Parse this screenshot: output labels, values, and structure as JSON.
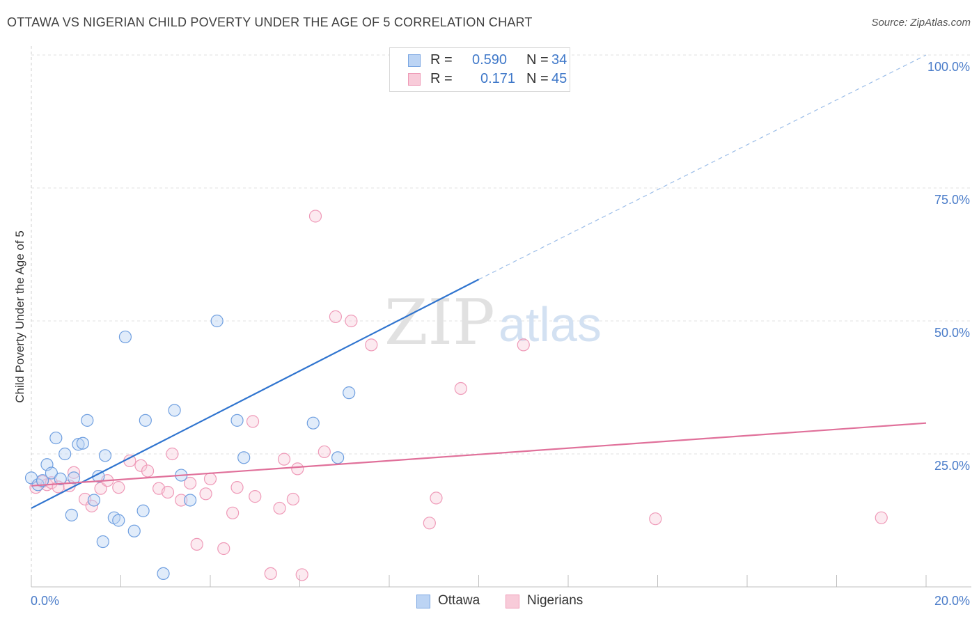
{
  "title": "OTTAWA VS NIGERIAN CHILD POVERTY UNDER THE AGE OF 5 CORRELATION CHART",
  "source": "Source: ZipAtlas.com",
  "watermark": {
    "part1": "ZIP",
    "part2": "atlas"
  },
  "legend": {
    "rows": [
      {
        "r_label": "R =",
        "r_value": "0.590",
        "n_label": "N =",
        "n_value": "34"
      },
      {
        "r_label": "R =",
        "r_value": "0.171",
        "n_label": "N =",
        "n_value": "45"
      }
    ]
  },
  "bottom_legend": {
    "ottawa": "Ottawa",
    "nigerians": "Nigerians"
  },
  "chart_data": {
    "type": "scatter",
    "title": "OTTAWA VS NIGERIAN CHILD POVERTY UNDER THE AGE OF 5 CORRELATION CHART",
    "xlabel": "",
    "ylabel": "Child Poverty Under the Age of 5",
    "xlim": [
      0,
      20
    ],
    "ylim": [
      0,
      100
    ],
    "x_ticks": [
      "0.0%",
      "20.0%"
    ],
    "y_ticks": [
      {
        "value": 25,
        "label": "25.0%"
      },
      {
        "value": 50,
        "label": "50.0%"
      },
      {
        "value": 75,
        "label": "75.0%"
      },
      {
        "value": 100,
        "label": "100.0%"
      }
    ],
    "grid": true,
    "legend_position": "top-center",
    "colors": {
      "ottawa": "#6f9fe0",
      "nigerians": "#ef9ab8",
      "ottawa_line": "#2f74cf",
      "nigerians_line": "#e0709a"
    },
    "series": [
      {
        "name": "Ottawa",
        "points": [
          [
            0.0,
            20.5
          ],
          [
            0.15,
            19.2
          ],
          [
            0.25,
            20.0
          ],
          [
            0.35,
            23.0
          ],
          [
            0.45,
            21.4
          ],
          [
            0.55,
            28.0
          ],
          [
            0.65,
            20.3
          ],
          [
            0.75,
            25.0
          ],
          [
            0.9,
            13.5
          ],
          [
            0.95,
            20.5
          ],
          [
            1.05,
            26.8
          ],
          [
            1.15,
            27.0
          ],
          [
            1.25,
            31.3
          ],
          [
            1.4,
            16.3
          ],
          [
            1.5,
            20.8
          ],
          [
            1.6,
            8.5
          ],
          [
            1.65,
            24.7
          ],
          [
            1.85,
            13.0
          ],
          [
            1.95,
            12.5
          ],
          [
            2.1,
            47.0
          ],
          [
            2.3,
            10.5
          ],
          [
            2.5,
            14.3
          ],
          [
            2.55,
            31.3
          ],
          [
            2.95,
            2.5
          ],
          [
            3.2,
            33.2
          ],
          [
            3.35,
            21.0
          ],
          [
            3.55,
            16.3
          ],
          [
            4.15,
            50.0
          ],
          [
            4.6,
            31.3
          ],
          [
            4.75,
            24.3
          ],
          [
            6.3,
            30.8
          ],
          [
            6.85,
            24.3
          ],
          [
            7.1,
            36.5
          ],
          [
            9.35,
            100.0
          ]
        ],
        "trend": {
          "x": [
            0.0,
            10.0
          ],
          "y": [
            14.8,
            57.8
          ],
          "extended_to": [
            20.0,
            100.0
          ]
        }
      },
      {
        "name": "Nigerians",
        "points": [
          [
            0.1,
            18.7
          ],
          [
            0.25,
            19.8
          ],
          [
            0.35,
            19.2
          ],
          [
            0.45,
            19.6
          ],
          [
            0.6,
            18.8
          ],
          [
            0.85,
            19.0
          ],
          [
            0.95,
            21.5
          ],
          [
            1.2,
            16.5
          ],
          [
            1.35,
            15.2
          ],
          [
            1.55,
            18.5
          ],
          [
            1.7,
            20.0
          ],
          [
            1.95,
            18.7
          ],
          [
            2.2,
            23.7
          ],
          [
            2.45,
            22.8
          ],
          [
            2.6,
            21.8
          ],
          [
            2.85,
            18.5
          ],
          [
            3.05,
            17.8
          ],
          [
            3.15,
            25.0
          ],
          [
            3.35,
            16.3
          ],
          [
            3.55,
            19.5
          ],
          [
            3.7,
            8.0
          ],
          [
            3.9,
            17.5
          ],
          [
            4.0,
            20.3
          ],
          [
            4.3,
            7.2
          ],
          [
            4.5,
            13.9
          ],
          [
            4.6,
            18.7
          ],
          [
            4.95,
            31.1
          ],
          [
            5.0,
            17.0
          ],
          [
            5.35,
            2.5
          ],
          [
            5.55,
            14.8
          ],
          [
            5.65,
            24.0
          ],
          [
            5.85,
            16.5
          ],
          [
            5.95,
            22.2
          ],
          [
            6.05,
            2.3
          ],
          [
            6.35,
            69.7
          ],
          [
            6.55,
            25.4
          ],
          [
            6.8,
            50.8
          ],
          [
            7.15,
            50.0
          ],
          [
            7.6,
            45.5
          ],
          [
            8.9,
            12.0
          ],
          [
            9.05,
            16.7
          ],
          [
            9.6,
            37.3
          ],
          [
            11.0,
            45.5
          ],
          [
            13.95,
            12.8
          ],
          [
            19.0,
            13.0
          ]
        ],
        "trend": {
          "x": [
            0.0,
            20.0
          ],
          "y": [
            19.0,
            30.8
          ]
        }
      }
    ]
  }
}
